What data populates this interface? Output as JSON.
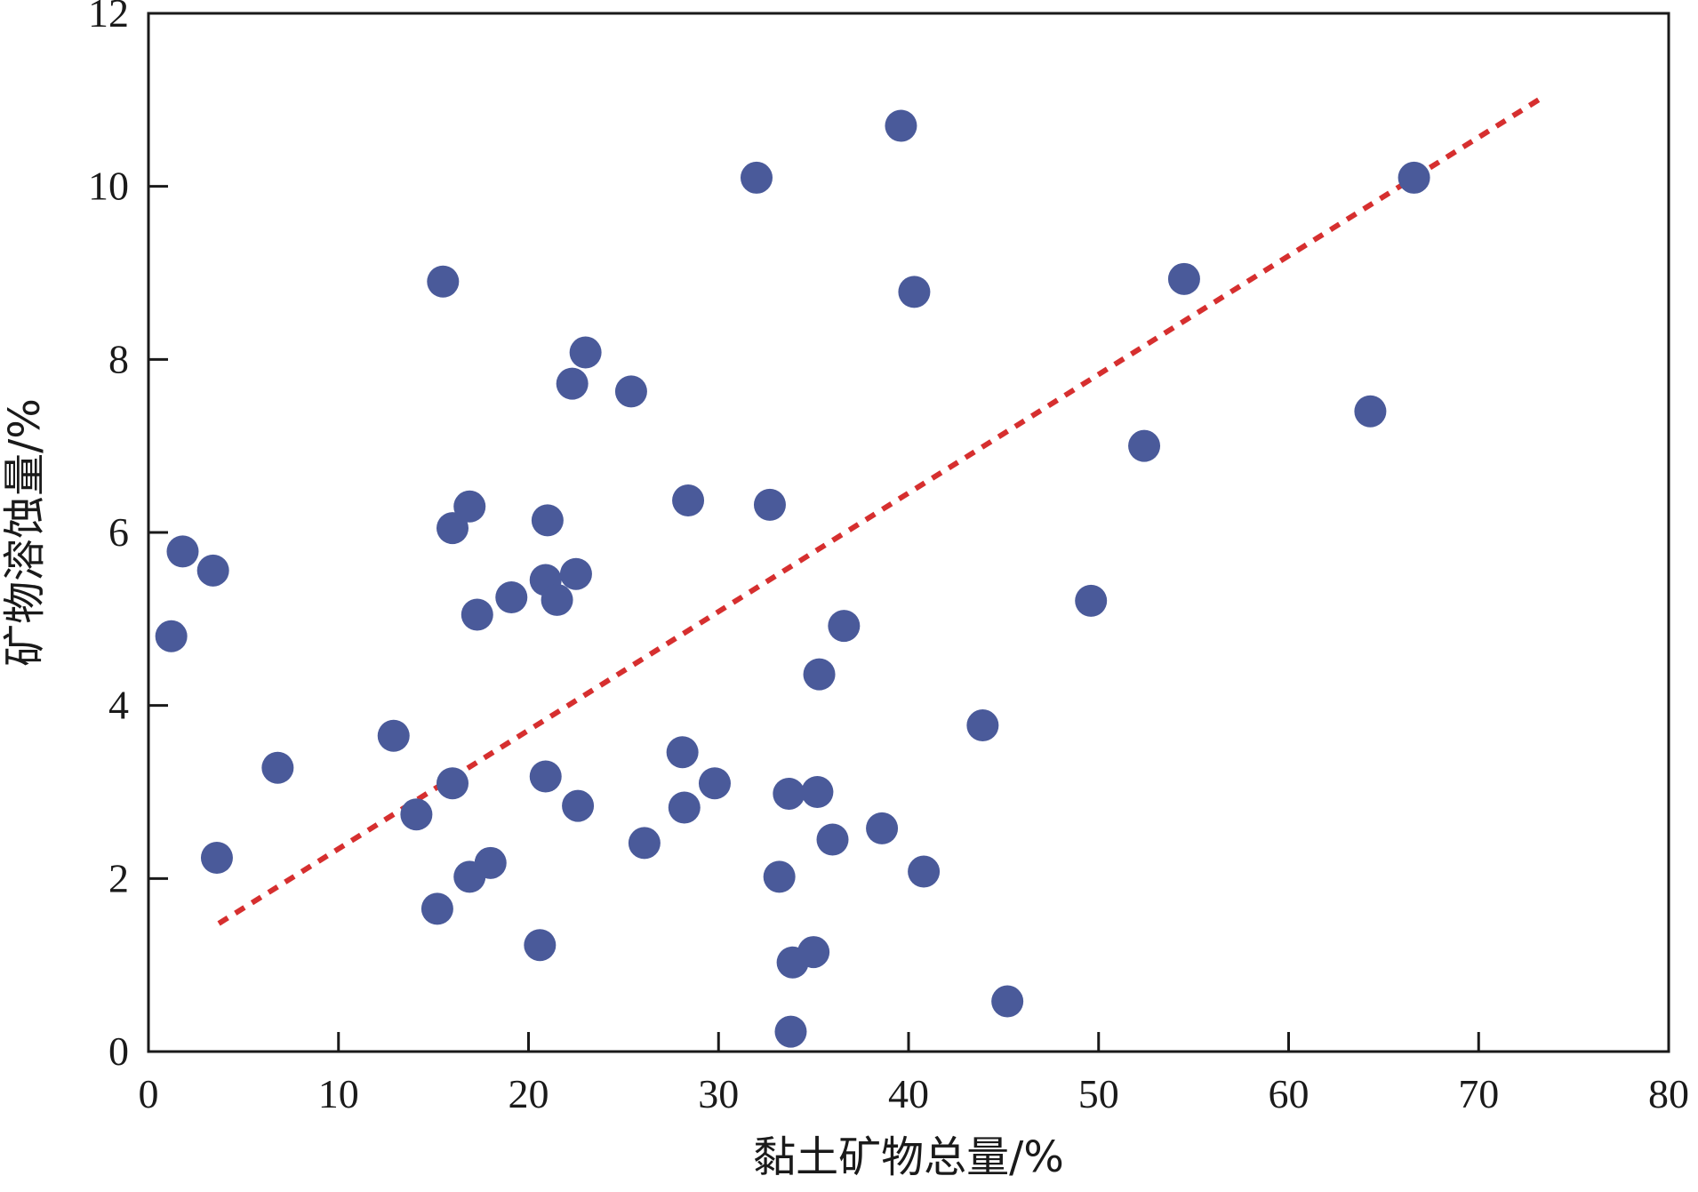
{
  "chart_data": {
    "type": "scatter",
    "title": "",
    "xlabel": "黏土矿物总量/%",
    "ylabel": "矿物溶蚀量/%",
    "xlim": [
      0,
      80
    ],
    "ylim": [
      0,
      12
    ],
    "x_ticks": [
      0,
      10,
      20,
      30,
      40,
      50,
      60,
      70,
      80
    ],
    "y_ticks": [
      0,
      2,
      4,
      6,
      8,
      10,
      12
    ],
    "x_tick_labels": [
      "0",
      "10",
      "20",
      "30",
      "40",
      "50",
      "60",
      "70",
      "80"
    ],
    "y_tick_labels": [
      "0",
      "2",
      "4",
      "6",
      "8",
      "10",
      "12"
    ],
    "grid": false,
    "legend": "none",
    "point_color": "#4a5a9a",
    "trend_color": "#d62f2f",
    "trendline": {
      "style": "dotted",
      "x": [
        3.7,
        73.3
      ],
      "y": [
        1.48,
        11.02
      ]
    },
    "points": [
      {
        "x": 1.2,
        "y": 4.8
      },
      {
        "x": 1.8,
        "y": 5.78
      },
      {
        "x": 3.4,
        "y": 5.56
      },
      {
        "x": 3.6,
        "y": 2.24
      },
      {
        "x": 6.8,
        "y": 3.28
      },
      {
        "x": 12.9,
        "y": 3.65
      },
      {
        "x": 14.1,
        "y": 2.74
      },
      {
        "x": 15.2,
        "y": 1.65
      },
      {
        "x": 15.5,
        "y": 8.9
      },
      {
        "x": 16.0,
        "y": 6.05
      },
      {
        "x": 16.0,
        "y": 3.1
      },
      {
        "x": 16.9,
        "y": 6.3
      },
      {
        "x": 16.9,
        "y": 2.02
      },
      {
        "x": 17.3,
        "y": 5.05
      },
      {
        "x": 18.0,
        "y": 2.18
      },
      {
        "x": 19.1,
        "y": 5.25
      },
      {
        "x": 20.6,
        "y": 1.23
      },
      {
        "x": 20.9,
        "y": 3.18
      },
      {
        "x": 20.9,
        "y": 5.45
      },
      {
        "x": 21.0,
        "y": 6.14
      },
      {
        "x": 21.5,
        "y": 5.22
      },
      {
        "x": 22.3,
        "y": 7.72
      },
      {
        "x": 22.5,
        "y": 5.52
      },
      {
        "x": 22.6,
        "y": 2.84
      },
      {
        "x": 23.0,
        "y": 8.08
      },
      {
        "x": 25.4,
        "y": 7.63
      },
      {
        "x": 26.1,
        "y": 2.41
      },
      {
        "x": 28.1,
        "y": 3.46
      },
      {
        "x": 28.2,
        "y": 2.82
      },
      {
        "x": 28.4,
        "y": 6.37
      },
      {
        "x": 29.8,
        "y": 3.1
      },
      {
        "x": 32.0,
        "y": 10.1
      },
      {
        "x": 32.7,
        "y": 6.32
      },
      {
        "x": 33.2,
        "y": 2.02
      },
      {
        "x": 33.7,
        "y": 2.98
      },
      {
        "x": 33.8,
        "y": 0.23
      },
      {
        "x": 33.9,
        "y": 1.03
      },
      {
        "x": 35.0,
        "y": 1.15
      },
      {
        "x": 35.2,
        "y": 3.0
      },
      {
        "x": 35.3,
        "y": 4.36
      },
      {
        "x": 36.0,
        "y": 2.45
      },
      {
        "x": 36.6,
        "y": 4.92
      },
      {
        "x": 38.6,
        "y": 2.58
      },
      {
        "x": 39.6,
        "y": 10.7
      },
      {
        "x": 40.3,
        "y": 8.78
      },
      {
        "x": 40.8,
        "y": 2.08
      },
      {
        "x": 43.9,
        "y": 3.77
      },
      {
        "x": 45.2,
        "y": 0.58
      },
      {
        "x": 49.6,
        "y": 5.21
      },
      {
        "x": 52.4,
        "y": 7.0
      },
      {
        "x": 54.5,
        "y": 8.93
      },
      {
        "x": 64.3,
        "y": 7.4
      },
      {
        "x": 66.6,
        "y": 10.1
      }
    ]
  }
}
